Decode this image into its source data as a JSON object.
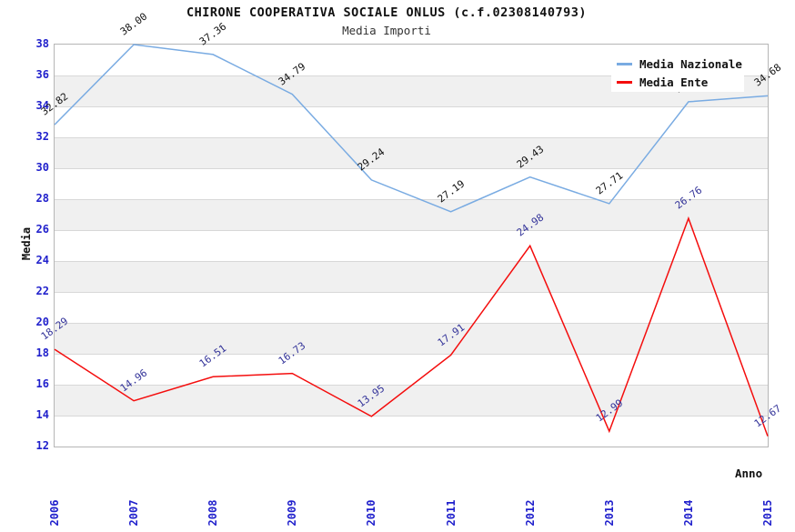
{
  "chart_data": {
    "type": "line",
    "title": "CHIRONE COOPERATIVA SOCIALE ONLUS (c.f.02308140793)",
    "subtitle": "Media Importi",
    "xlabel": "Anno",
    "ylabel": "Media",
    "categories": [
      "2006",
      "2007",
      "2008",
      "2009",
      "2010",
      "2011",
      "2012",
      "2013",
      "2014",
      "2015"
    ],
    "ylim": [
      12,
      38
    ],
    "ytick_step": 2,
    "grid": "horizontal-bands",
    "legend_position": "top-right",
    "series": [
      {
        "name": "Media Nazionale",
        "color": "#79abe2",
        "label_color": "#111111",
        "values": [
          32.82,
          38.0,
          37.36,
          34.79,
          29.24,
          27.19,
          29.43,
          27.71,
          34.3,
          34.68
        ]
      },
      {
        "name": "Media Ente",
        "color": "#f40d0d",
        "label_color": "#333399",
        "values": [
          18.29,
          14.96,
          16.51,
          16.73,
          13.95,
          17.91,
          24.98,
          12.99,
          26.76,
          12.67
        ]
      }
    ],
    "colors": {
      "axis_tick_text": "#2121cc",
      "band_fill": "#f0f0f0",
      "grid_line": "#d8d8d8"
    }
  }
}
